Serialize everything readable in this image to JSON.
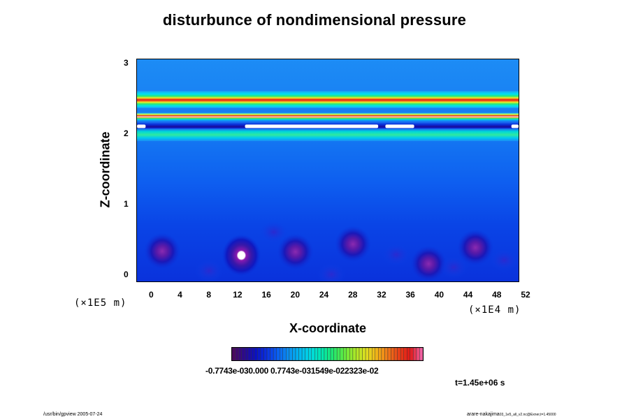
{
  "chart_data": {
    "type": "heatmap",
    "title": "disturbunce of nondimensional pressure",
    "xlabel": "X-coordinate",
    "ylabel": "Z-coordinate",
    "x_scale_note": "(×1E4 m)",
    "y_scale_note": "(×1E5 m)",
    "x_ticks": [
      "0",
      "4",
      "8",
      "12",
      "16",
      "20",
      "24",
      "28",
      "32",
      "36",
      "40",
      "44",
      "48",
      "52"
    ],
    "y_ticks": [
      "0",
      "1",
      "2",
      "3"
    ],
    "xlim": [
      -1,
      52
    ],
    "ylim": [
      -0.1,
      3.05
    ],
    "colorbar_labels": "-0.7743e-030.000 0.7743e-031549e-022323e-02",
    "colorbar_ticks": [
      -0.007743,
      0.0,
      0.007743,
      0.01549,
      0.02323
    ],
    "bands": [
      {
        "z": 2.48,
        "level": "red-peak"
      },
      {
        "z": 2.23,
        "level": "red-peak"
      },
      {
        "z": 2.1,
        "level": "below-min"
      },
      {
        "z": 1.98,
        "level": "cyan-green"
      }
    ],
    "extrema": [
      {
        "x": 2.5,
        "z": 0.33,
        "level": "minimum"
      },
      {
        "x": 13.5,
        "z": 0.27,
        "level": "below-min"
      },
      {
        "x": 21,
        "z": 0.32,
        "level": "minimum"
      },
      {
        "x": 29,
        "z": 0.43,
        "level": "minimum"
      },
      {
        "x": 39.5,
        "z": 0.15,
        "level": "minimum"
      },
      {
        "x": 46,
        "z": 0.38,
        "level": "minimum"
      }
    ],
    "time_label": "t=1.45e+06 s"
  },
  "footer": {
    "left": "/usr/bin/gpview 2005-07-24",
    "right_main": "arare-nakajima",
    "right_sub": "03_1e5_all_v2.nc@Exner,t=1.45000"
  },
  "colors": {
    "background_blue": "#0a4cf5",
    "mid_blue": "#1e74f0",
    "deep_blue": "#0a28d8",
    "cyan": "#00e0f0",
    "green": "#28e878",
    "yellow": "#e8f028",
    "red": "#e01818",
    "magenta_peak": "#ff8cc8",
    "minimum_purple": "#7a1ea0"
  }
}
